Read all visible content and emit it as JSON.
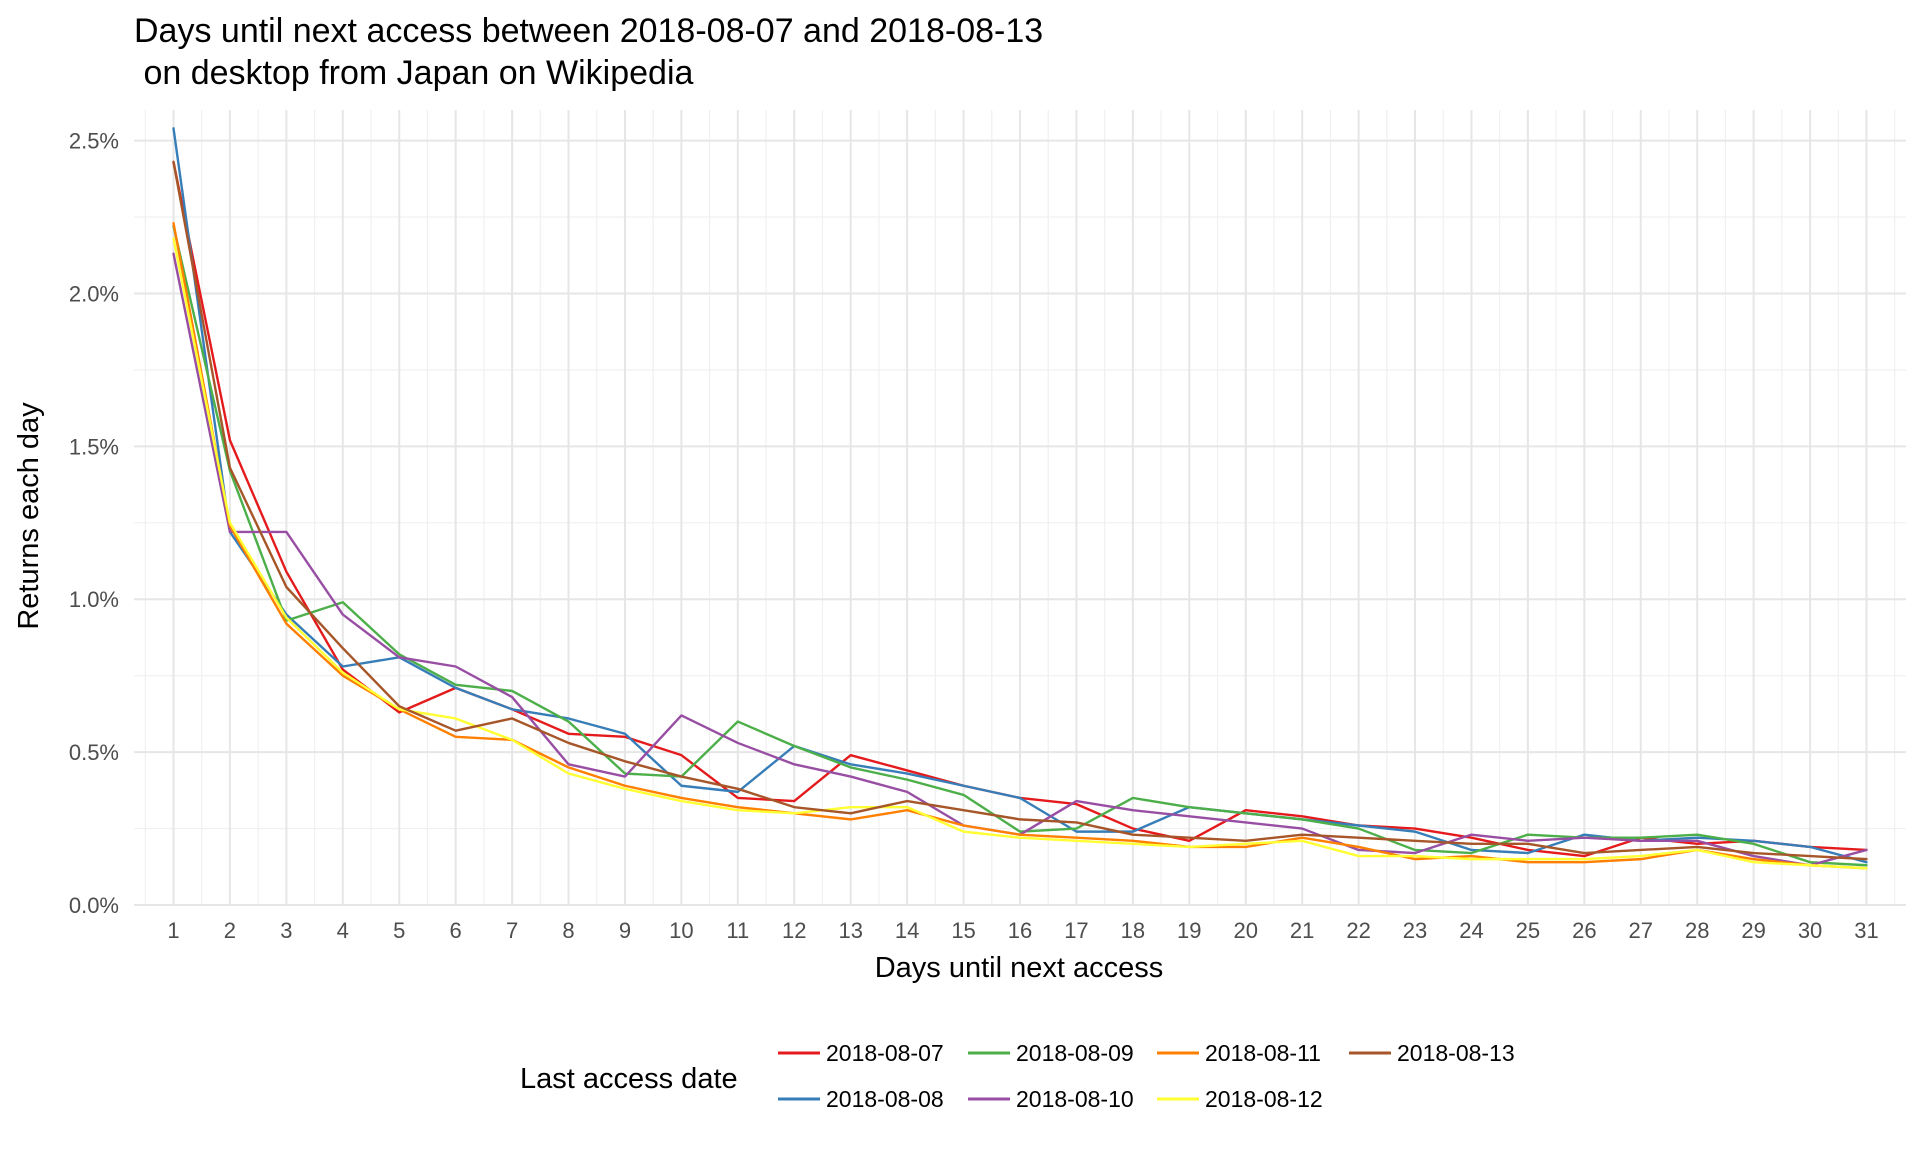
{
  "chart_data": {
    "type": "line",
    "title_line1": "Days until next access between 2018-08-07 and 2018-08-13",
    "title_line2": " on desktop from Japan on Wikipedia",
    "xlabel": "Days until next access",
    "ylabel": "Returns each day",
    "x": [
      1,
      2,
      3,
      4,
      5,
      6,
      7,
      8,
      9,
      10,
      11,
      12,
      13,
      14,
      15,
      16,
      17,
      18,
      19,
      20,
      21,
      22,
      23,
      24,
      25,
      26,
      27,
      28,
      29,
      30,
      31
    ],
    "x_ticks": [
      "1",
      "2",
      "3",
      "4",
      "5",
      "6",
      "7",
      "8",
      "9",
      "10",
      "11",
      "12",
      "13",
      "14",
      "15",
      "16",
      "17",
      "18",
      "19",
      "20",
      "21",
      "22",
      "23",
      "24",
      "25",
      "26",
      "27",
      "28",
      "29",
      "30",
      "31"
    ],
    "xlim": [
      0.3,
      31.7
    ],
    "ylim": [
      0,
      0.026
    ],
    "y_ticks": [
      0,
      0.005,
      0.01,
      0.015,
      0.02,
      0.025
    ],
    "y_tick_labels": [
      "0.0%",
      "0.5%",
      "1.0%",
      "1.5%",
      "2.0%",
      "2.5%"
    ],
    "grid": true,
    "legend": {
      "title": "Last access date",
      "position": "bottom"
    },
    "series": [
      {
        "name": "2018-08-07",
        "color": "#e41a1c",
        "values": [
          0.0243,
          0.0152,
          0.0109,
          0.0077,
          0.0063,
          0.0071,
          0.0064,
          0.0056,
          0.0055,
          0.0049,
          0.0035,
          0.0034,
          0.0049,
          0.0044,
          0.0039,
          0.0035,
          0.0033,
          0.0025,
          0.0021,
          0.0031,
          0.0029,
          0.0026,
          0.0025,
          0.0022,
          0.0018,
          0.0016,
          0.0022,
          0.002,
          0.0021,
          0.0019,
          0.0018
        ]
      },
      {
        "name": "2018-08-08",
        "color": "#377eb8",
        "values": [
          0.0254,
          0.0122,
          0.0095,
          0.0078,
          0.0081,
          0.0071,
          0.0064,
          0.0061,
          0.0056,
          0.0039,
          0.0037,
          0.0052,
          0.0046,
          0.0043,
          0.0039,
          0.0035,
          0.0024,
          0.0024,
          0.0032,
          0.003,
          0.0028,
          0.0026,
          0.0024,
          0.0018,
          0.0017,
          0.0023,
          0.0021,
          0.0022,
          0.0021,
          0.0019,
          0.0014
        ]
      },
      {
        "name": "2018-08-09",
        "color": "#4daf4a",
        "values": [
          0.0222,
          0.0142,
          0.0093,
          0.0099,
          0.0082,
          0.0072,
          0.007,
          0.006,
          0.0043,
          0.0042,
          0.006,
          0.0052,
          0.0045,
          0.0041,
          0.0036,
          0.0024,
          0.0025,
          0.0035,
          0.0032,
          0.003,
          0.0028,
          0.0025,
          0.0018,
          0.0017,
          0.0023,
          0.0022,
          0.0022,
          0.0023,
          0.002,
          0.0014,
          0.0013
        ]
      },
      {
        "name": "2018-08-10",
        "color": "#984ea3",
        "values": [
          0.0213,
          0.0122,
          0.0122,
          0.0095,
          0.0081,
          0.0078,
          0.0068,
          0.0046,
          0.0042,
          0.0062,
          0.0053,
          0.0046,
          0.0042,
          0.0037,
          0.0026,
          0.0023,
          0.0034,
          0.0031,
          0.0029,
          0.0027,
          0.0025,
          0.0018,
          0.0017,
          0.0023,
          0.0021,
          0.0022,
          0.0021,
          0.0021,
          0.0016,
          0.0013,
          0.0018
        ]
      },
      {
        "name": "2018-08-11",
        "color": "#ff7f00",
        "values": [
          0.0223,
          0.0124,
          0.0092,
          0.0075,
          0.0064,
          0.0055,
          0.0054,
          0.0045,
          0.0039,
          0.0035,
          0.0032,
          0.003,
          0.0028,
          0.0031,
          0.0026,
          0.0023,
          0.0022,
          0.0021,
          0.0019,
          0.0019,
          0.0022,
          0.0019,
          0.0015,
          0.0016,
          0.0014,
          0.0014,
          0.0015,
          0.0018,
          0.0015,
          0.0013,
          0.0012
        ]
      },
      {
        "name": "2018-08-12",
        "color": "#ffff33",
        "values": [
          0.0218,
          0.0125,
          0.0094,
          0.0076,
          0.0064,
          0.0061,
          0.0054,
          0.0043,
          0.0038,
          0.0034,
          0.0031,
          0.003,
          0.0032,
          0.0032,
          0.0024,
          0.0022,
          0.0021,
          0.002,
          0.0019,
          0.002,
          0.0021,
          0.0016,
          0.0016,
          0.0015,
          0.0015,
          0.0015,
          0.0016,
          0.0018,
          0.0014,
          0.0013,
          0.0012
        ]
      },
      {
        "name": "2018-08-13",
        "color": "#a65628",
        "values": [
          0.0243,
          0.0143,
          0.0104,
          0.0084,
          0.0065,
          0.0057,
          0.0061,
          0.0053,
          0.0047,
          0.0042,
          0.0038,
          0.0032,
          0.003,
          0.0034,
          0.0031,
          0.0028,
          0.0027,
          0.0023,
          0.0022,
          0.0021,
          0.0023,
          0.0022,
          0.0021,
          0.002,
          0.002,
          0.0017,
          0.0018,
          0.0019,
          0.0017,
          0.0016,
          0.0015
        ]
      }
    ]
  }
}
